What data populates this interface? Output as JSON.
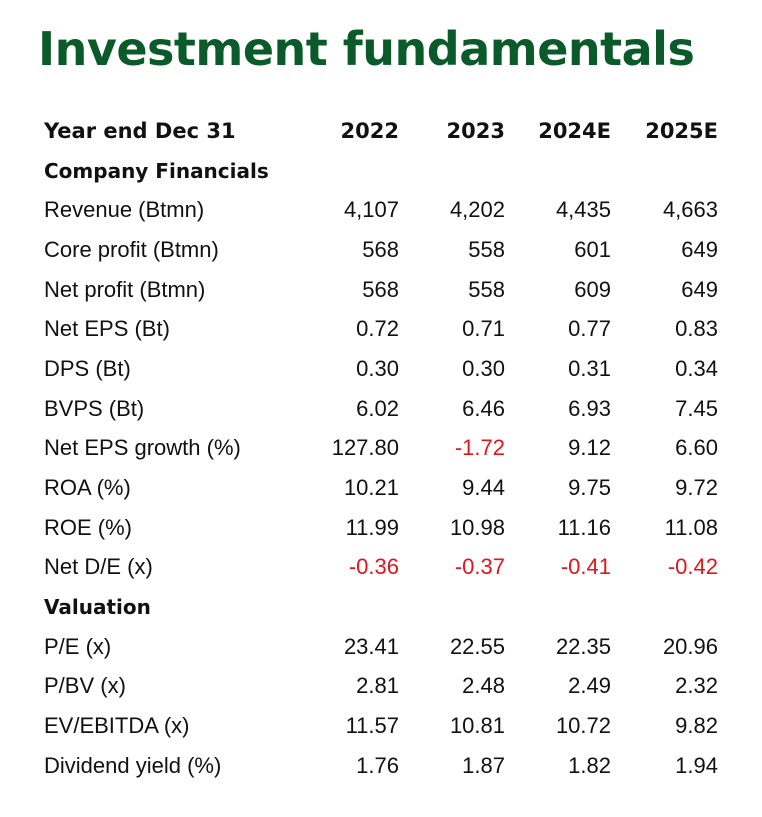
{
  "title": "Investment fundamentals",
  "header": {
    "label": "Year end Dec 31",
    "years": [
      "2022",
      "2023",
      "2024E",
      "2025E"
    ]
  },
  "sections": [
    {
      "name": "Company Financials",
      "rows": [
        {
          "label": "Revenue (Btmn)",
          "values": [
            "4,107",
            "4,202",
            "4,435",
            "4,663"
          ]
        },
        {
          "label": "Core profit (Btmn)",
          "values": [
            "568",
            "558",
            "601",
            "649"
          ]
        },
        {
          "label": "Net profit (Btmn)",
          "values": [
            "568",
            "558",
            "609",
            "649"
          ]
        },
        {
          "label": "Net EPS (Bt)",
          "values": [
            "0.72",
            "0.71",
            "0.77",
            "0.83"
          ]
        },
        {
          "label": "DPS (Bt)",
          "values": [
            "0.30",
            "0.30",
            "0.31",
            "0.34"
          ]
        },
        {
          "label": "BVPS (Bt)",
          "values": [
            "6.02",
            "6.46",
            "6.93",
            "7.45"
          ]
        },
        {
          "label": "Net EPS growth (%)",
          "values": [
            "127.80",
            "-1.72",
            "9.12",
            "6.60"
          ]
        },
        {
          "label": "ROA (%)",
          "values": [
            "10.21",
            "9.44",
            "9.75",
            "9.72"
          ]
        },
        {
          "label": "ROE (%)",
          "values": [
            "11.99",
            "10.98",
            "11.16",
            "11.08"
          ]
        },
        {
          "label": "Net D/E (x)",
          "values": [
            "-0.36",
            "-0.37",
            "-0.41",
            "-0.42"
          ]
        }
      ]
    },
    {
      "name": "Valuation",
      "rows": [
        {
          "label": "P/E (x)",
          "values": [
            "23.41",
            "22.55",
            "22.35",
            "20.96"
          ]
        },
        {
          "label": "P/BV (x)",
          "values": [
            "2.81",
            "2.48",
            "2.49",
            "2.32"
          ]
        },
        {
          "label": "EV/EBITDA (x)",
          "values": [
            "11.57",
            "10.81",
            "10.72",
            "9.82"
          ]
        },
        {
          "label": "Dividend yield (%)",
          "values": [
            "1.76",
            "1.87",
            "1.82",
            "1.94"
          ]
        }
      ]
    }
  ],
  "colors": {
    "title": "#0b5a2a",
    "text": "#111111",
    "negative": "#e3141b"
  }
}
